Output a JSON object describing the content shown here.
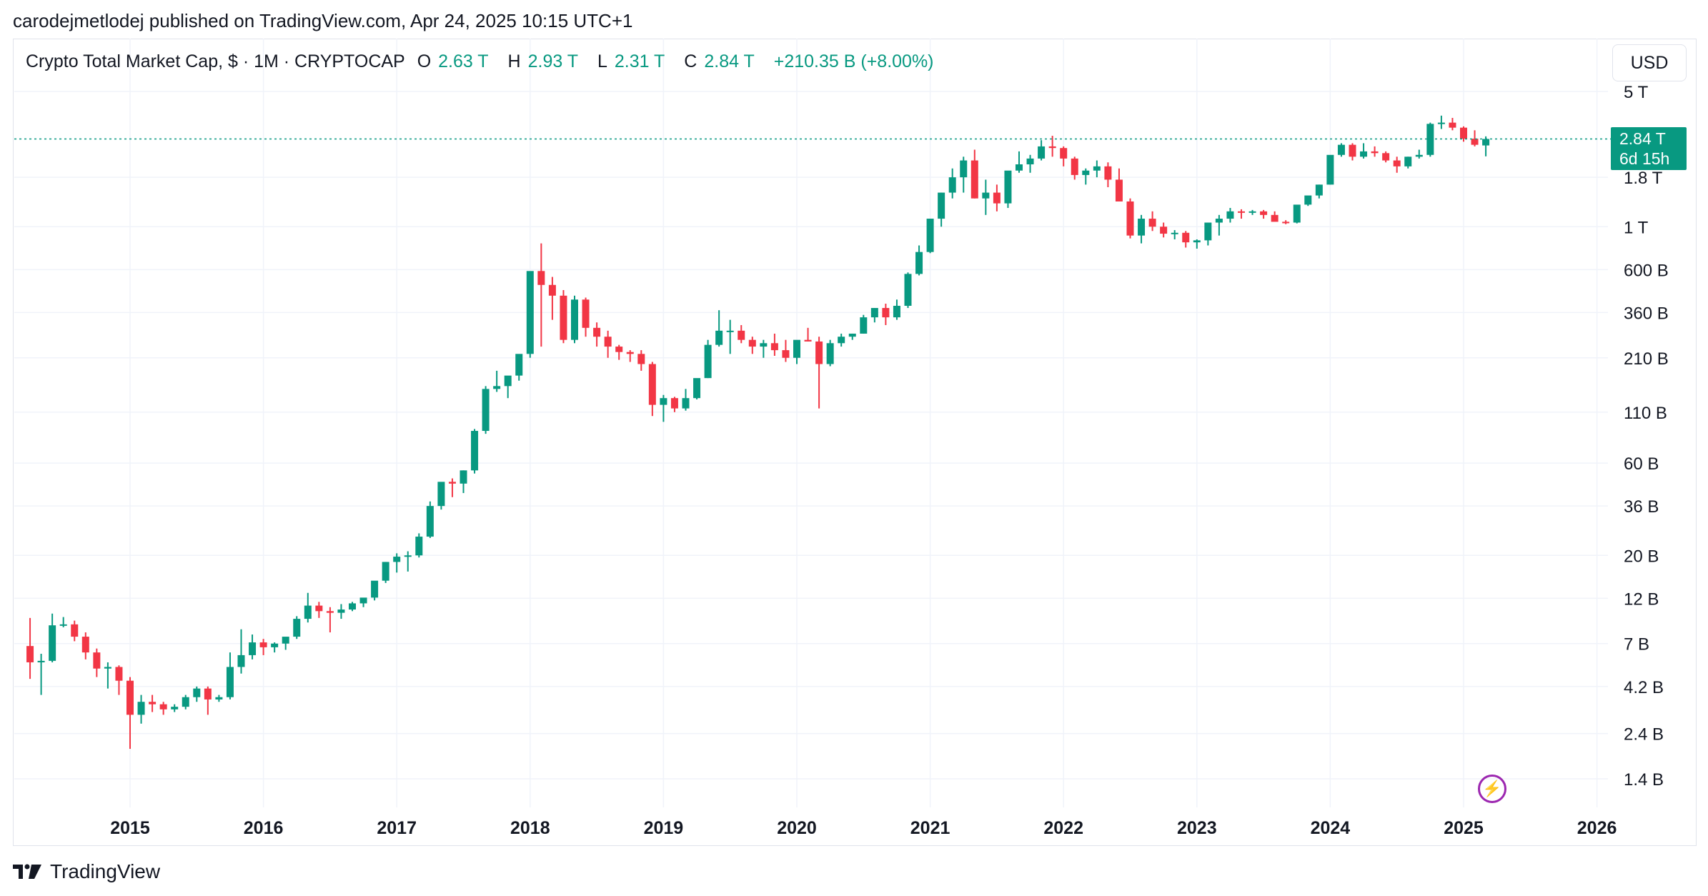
{
  "publisher": "carodejmetlodej published on TradingView.com, Apr 24, 2025 10:15 UTC+1",
  "legend": {
    "title": "Crypto Total Market Cap, $ · 1M · CRYPTOCAP",
    "o_label": "O",
    "o_value": "2.63 T",
    "h_label": "H",
    "h_value": "2.93 T",
    "l_label": "L",
    "l_value": "2.31 T",
    "c_label": "C",
    "c_value": "2.84 T",
    "change": "+210.35 B (+8.00%)"
  },
  "currency_button": "USD",
  "price_tag": {
    "price": "2.84 T",
    "countdown": "6d 15h"
  },
  "brand": "TradingView",
  "colors": {
    "up": "#089981",
    "down": "#f23645",
    "grid": "#f0f3fa",
    "text": "#131722",
    "bolt": "#9c27b0"
  },
  "icons": {
    "bolt": "lightning-bolt-icon",
    "logo": "tradingview-logo-icon"
  },
  "chart_data": {
    "type": "candlestick",
    "title": "Crypto Total Market Cap, $ · 1M · CRYPTOCAP",
    "interval": "1M",
    "y_scale": "log",
    "x_start_month": "2014-04",
    "ylim": [
      1100000000,
      6500000000000
    ],
    "y_ticks": [
      {
        "label": "5 T",
        "value": 5000000000000
      },
      {
        "label": "1.8 T",
        "value": 1800000000000
      },
      {
        "label": "1 T",
        "value": 1000000000000
      },
      {
        "label": "600 B",
        "value": 600000000000
      },
      {
        "label": "360 B",
        "value": 360000000000
      },
      {
        "label": "210 B",
        "value": 210000000000
      },
      {
        "label": "110 B",
        "value": 110000000000
      },
      {
        "label": "60 B",
        "value": 60000000000
      },
      {
        "label": "36 B",
        "value": 36000000000
      },
      {
        "label": "20 B",
        "value": 20000000000
      },
      {
        "label": "12 B",
        "value": 12000000000
      },
      {
        "label": "7 B",
        "value": 7000000000
      },
      {
        "label": "4.2 B",
        "value": 4200000000
      },
      {
        "label": "2.4 B",
        "value": 2400000000
      },
      {
        "label": "1.4 B",
        "value": 1400000000
      }
    ],
    "x_ticks": [
      "2015",
      "2016",
      "2017",
      "2018",
      "2019",
      "2020",
      "2021",
      "2022",
      "2023",
      "2024",
      "2025",
      "2026"
    ],
    "last_close": 2840000000000,
    "candles_billions": [
      [
        6.8,
        9.5,
        4.6,
        5.6
      ],
      [
        5.6,
        6.2,
        3.8,
        5.7
      ],
      [
        5.7,
        10,
        5.6,
        8.7
      ],
      [
        8.7,
        9.6,
        8.5,
        8.8
      ],
      [
        8.8,
        9.2,
        7.2,
        7.6
      ],
      [
        7.6,
        8.0,
        5.8,
        6.3
      ],
      [
        6.3,
        6.6,
        4.7,
        5.2
      ],
      [
        5.2,
        5.6,
        4.1,
        5.3
      ],
      [
        5.3,
        5.4,
        3.8,
        4.5
      ],
      [
        4.5,
        4.7,
        2.0,
        3.0
      ],
      [
        3.0,
        3.8,
        2.7,
        3.5
      ],
      [
        3.5,
        3.8,
        3.1,
        3.4
      ],
      [
        3.4,
        3.5,
        3.0,
        3.2
      ],
      [
        3.2,
        3.4,
        3.1,
        3.3
      ],
      [
        3.3,
        3.8,
        3.2,
        3.7
      ],
      [
        3.7,
        4.2,
        3.5,
        4.1
      ],
      [
        4.1,
        4.2,
        3.0,
        3.6
      ],
      [
        3.6,
        3.8,
        3.5,
        3.7
      ],
      [
        3.7,
        6.3,
        3.6,
        5.3
      ],
      [
        5.3,
        8.3,
        4.9,
        6.1
      ],
      [
        6.1,
        7.8,
        5.8,
        7.1
      ],
      [
        7.1,
        7.4,
        6.1,
        6.7
      ],
      [
        6.7,
        7.1,
        6.3,
        7.0
      ],
      [
        7.0,
        7.5,
        6.5,
        7.6
      ],
      [
        7.6,
        9.7,
        7.4,
        9.4
      ],
      [
        9.4,
        12.8,
        9.0,
        11.0
      ],
      [
        11.0,
        11.5,
        9.5,
        10.3
      ],
      [
        10.3,
        10.8,
        8.0,
        10.1
      ],
      [
        10.1,
        11.2,
        9.4,
        10.5
      ],
      [
        10.5,
        11.5,
        10.3,
        11.3
      ],
      [
        11.3,
        12,
        10.8,
        12.1
      ],
      [
        12.1,
        14.4,
        11.7,
        14.8
      ],
      [
        14.8,
        18.5,
        14.4,
        18.5
      ],
      [
        18.5,
        20.5,
        16.3,
        19.7
      ],
      [
        19.7,
        21,
        16.5,
        20.0
      ],
      [
        20.0,
        26,
        19.5,
        25.0
      ],
      [
        25.0,
        38,
        24.6,
        36.0
      ],
      [
        36.0,
        45,
        34.5,
        48.0
      ],
      [
        48.0,
        50,
        40,
        47.0
      ],
      [
        47.0,
        55,
        42,
        55.0
      ],
      [
        55.0,
        90,
        53,
        88.0
      ],
      [
        88.0,
        150,
        85,
        145.0
      ],
      [
        145.0,
        180,
        140,
        150.0
      ],
      [
        150.0,
        160,
        130,
        170.0
      ],
      [
        170.0,
        200,
        160,
        220.0
      ],
      [
        220.0,
        450,
        210,
        590.0
      ],
      [
        590.0,
        820,
        240,
        500.0
      ],
      [
        500.0,
        550,
        330,
        440.0
      ],
      [
        440.0,
        470,
        250,
        260.0
      ],
      [
        260.0,
        440,
        250,
        420.0
      ],
      [
        420.0,
        430,
        270,
        300.0
      ],
      [
        300.0,
        320,
        240,
        270.0
      ],
      [
        270.0,
        290,
        210,
        240.0
      ],
      [
        240.0,
        245,
        205,
        225.0
      ],
      [
        225.0,
        230,
        200,
        220.0
      ],
      [
        220.0,
        230,
        180,
        195.0
      ],
      [
        195.0,
        200,
        105,
        120.0
      ],
      [
        120.0,
        135,
        98,
        130.0
      ],
      [
        130.0,
        132,
        110,
        115.0
      ],
      [
        115.0,
        145,
        112,
        130.0
      ],
      [
        130.0,
        155,
        128,
        165.0
      ],
      [
        165.0,
        260,
        165,
        245.0
      ],
      [
        245.0,
        370,
        240,
        290.0
      ],
      [
        290.0,
        330,
        220,
        290.0
      ],
      [
        290.0,
        310,
        250,
        260.0
      ],
      [
        260.0,
        270,
        220,
        240.0
      ],
      [
        240.0,
        260,
        210,
        250.0
      ],
      [
        250.0,
        280,
        215,
        230.0
      ],
      [
        230.0,
        260,
        200,
        210.0
      ],
      [
        210.0,
        250,
        195,
        260.0
      ],
      [
        260.0,
        300,
        255,
        255.0
      ],
      [
        255.0,
        270,
        115,
        195.0
      ],
      [
        195.0,
        260,
        190,
        250.0
      ],
      [
        250.0,
        280,
        240,
        270.0
      ],
      [
        270.0,
        280,
        260,
        280.0
      ],
      [
        280.0,
        350,
        280,
        340.0
      ],
      [
        340.0,
        380,
        320,
        380.0
      ],
      [
        380.0,
        400,
        310,
        340.0
      ],
      [
        340.0,
        420,
        330,
        390.0
      ],
      [
        390.0,
        580,
        380,
        570.0
      ],
      [
        570.0,
        800,
        560,
        740.0
      ],
      [
        740.0,
        1100,
        730,
        1100.0
      ],
      [
        1100.0,
        1500,
        1000,
        1500.0
      ],
      [
        1500.0,
        2000,
        1400,
        1800.0
      ],
      [
        1800.0,
        2300,
        1500,
        2200.0
      ],
      [
        2200.0,
        2500,
        1400,
        1400.0
      ],
      [
        1400.0,
        1750,
        1150,
        1500.0
      ],
      [
        1500.0,
        1650,
        1200,
        1320.0
      ],
      [
        1320.0,
        1700,
        1250,
        1950.0
      ],
      [
        1950.0,
        2450,
        1900,
        2100.0
      ],
      [
        2100.0,
        2350,
        1900,
        2250.0
      ],
      [
        2250.0,
        2800,
        2200,
        2600.0
      ],
      [
        2600.0,
        2950,
        2300,
        2550.0
      ],
      [
        2550.0,
        2600,
        2050,
        2250.0
      ],
      [
        2250.0,
        2300,
        1750,
        1850.0
      ],
      [
        1850.0,
        2000,
        1650,
        1950.0
      ],
      [
        1950.0,
        2200,
        1800,
        2050.0
      ],
      [
        2050.0,
        2150,
        1600,
        1750.0
      ],
      [
        1750.0,
        2000,
        1650,
        1350.0
      ],
      [
        1350.0,
        1400,
        870,
        900.0
      ],
      [
        900.0,
        1150,
        820,
        1100.0
      ],
      [
        1100.0,
        1200,
        950,
        1000.0
      ],
      [
        1000.0,
        1050,
        880,
        920.0
      ],
      [
        920.0,
        960,
        860,
        930.0
      ],
      [
        930.0,
        950,
        780,
        830.0
      ],
      [
        830.0,
        860,
        770,
        850.0
      ],
      [
        850.0,
        1050,
        800,
        1050.0
      ],
      [
        1050.0,
        1150,
        900,
        1100.0
      ],
      [
        1100.0,
        1250,
        1050,
        1200.0
      ],
      [
        1200.0,
        1230,
        1100,
        1180.0
      ],
      [
        1180.0,
        1220,
        1150,
        1200.0
      ],
      [
        1200.0,
        1220,
        1100,
        1150.0
      ],
      [
        1150.0,
        1200,
        1070,
        1060.0
      ],
      [
        1060.0,
        1080,
        1030,
        1050.0
      ],
      [
        1050.0,
        1150,
        1040,
        1300.0
      ],
      [
        1300.0,
        1400,
        1280,
        1450.0
      ],
      [
        1450.0,
        1650,
        1400,
        1650.0
      ],
      [
        1650.0,
        1700,
        1650,
        2350.0
      ],
      [
        2350.0,
        2700,
        2300,
        2650.0
      ],
      [
        2650.0,
        2700,
        2200,
        2300.0
      ],
      [
        2300.0,
        2700,
        2250,
        2450.0
      ],
      [
        2450.0,
        2600,
        2300,
        2400.0
      ],
      [
        2400.0,
        2450,
        2150,
        2200.0
      ],
      [
        2200.0,
        2300,
        1900,
        2050.0
      ],
      [
        2050.0,
        2300,
        2000,
        2300.0
      ],
      [
        2300.0,
        2500,
        2250,
        2350.0
      ],
      [
        2350.0,
        3450,
        2300,
        3400.0
      ],
      [
        3400.0,
        3750,
        3200,
        3450.0
      ],
      [
        3450.0,
        3650,
        3150,
        3250.0
      ],
      [
        3250.0,
        3300,
        2750,
        2850.0
      ],
      [
        2850.0,
        3150,
        2600,
        2650.0
      ],
      [
        2630.0,
        2930,
        2310,
        2840.0
      ]
    ]
  }
}
